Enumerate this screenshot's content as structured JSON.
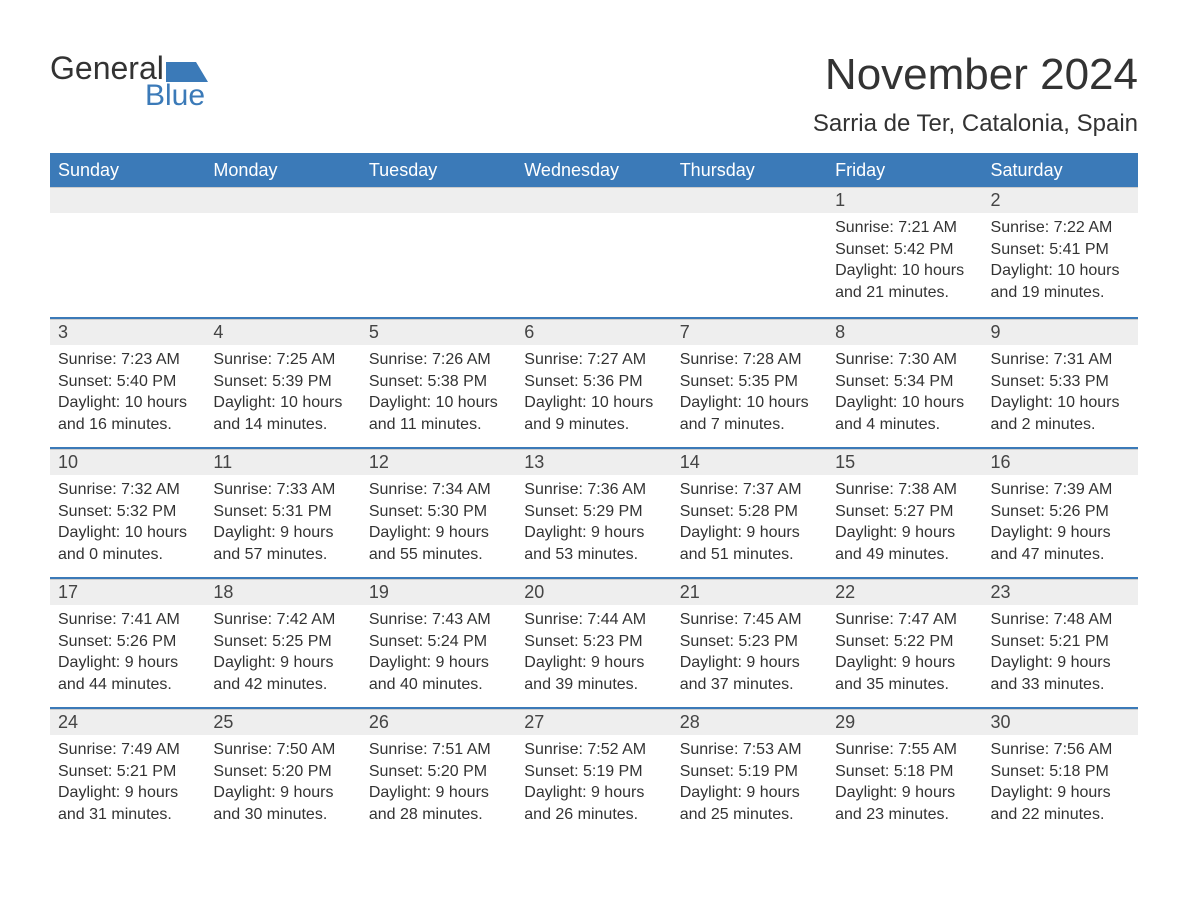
{
  "logo": {
    "text1": "General",
    "text2": "Blue",
    "accent_color": "#3b7ab8"
  },
  "title": "November 2024",
  "location": "Sarria de Ter, Catalonia, Spain",
  "colors": {
    "header_bg": "#3b7ab8",
    "header_text": "#ffffff",
    "row_divider": "#3b7ab8",
    "date_bg": "#eeeeee",
    "text": "#333333"
  },
  "day_headers": [
    "Sunday",
    "Monday",
    "Tuesday",
    "Wednesday",
    "Thursday",
    "Friday",
    "Saturday"
  ],
  "labels": {
    "sunrise": "Sunrise:",
    "sunset": "Sunset:",
    "daylight": "Daylight:"
  },
  "weeks": [
    [
      null,
      null,
      null,
      null,
      null,
      {
        "date": "1",
        "sunrise": "7:21 AM",
        "sunset": "5:42 PM",
        "daylight": "10 hours and 21 minutes."
      },
      {
        "date": "2",
        "sunrise": "7:22 AM",
        "sunset": "5:41 PM",
        "daylight": "10 hours and 19 minutes."
      }
    ],
    [
      {
        "date": "3",
        "sunrise": "7:23 AM",
        "sunset": "5:40 PM",
        "daylight": "10 hours and 16 minutes."
      },
      {
        "date": "4",
        "sunrise": "7:25 AM",
        "sunset": "5:39 PM",
        "daylight": "10 hours and 14 minutes."
      },
      {
        "date": "5",
        "sunrise": "7:26 AM",
        "sunset": "5:38 PM",
        "daylight": "10 hours and 11 minutes."
      },
      {
        "date": "6",
        "sunrise": "7:27 AM",
        "sunset": "5:36 PM",
        "daylight": "10 hours and 9 minutes."
      },
      {
        "date": "7",
        "sunrise": "7:28 AM",
        "sunset": "5:35 PM",
        "daylight": "10 hours and 7 minutes."
      },
      {
        "date": "8",
        "sunrise": "7:30 AM",
        "sunset": "5:34 PM",
        "daylight": "10 hours and 4 minutes."
      },
      {
        "date": "9",
        "sunrise": "7:31 AM",
        "sunset": "5:33 PM",
        "daylight": "10 hours and 2 minutes."
      }
    ],
    [
      {
        "date": "10",
        "sunrise": "7:32 AM",
        "sunset": "5:32 PM",
        "daylight": "10 hours and 0 minutes."
      },
      {
        "date": "11",
        "sunrise": "7:33 AM",
        "sunset": "5:31 PM",
        "daylight": "9 hours and 57 minutes."
      },
      {
        "date": "12",
        "sunrise": "7:34 AM",
        "sunset": "5:30 PM",
        "daylight": "9 hours and 55 minutes."
      },
      {
        "date": "13",
        "sunrise": "7:36 AM",
        "sunset": "5:29 PM",
        "daylight": "9 hours and 53 minutes."
      },
      {
        "date": "14",
        "sunrise": "7:37 AM",
        "sunset": "5:28 PM",
        "daylight": "9 hours and 51 minutes."
      },
      {
        "date": "15",
        "sunrise": "7:38 AM",
        "sunset": "5:27 PM",
        "daylight": "9 hours and 49 minutes."
      },
      {
        "date": "16",
        "sunrise": "7:39 AM",
        "sunset": "5:26 PM",
        "daylight": "9 hours and 47 minutes."
      }
    ],
    [
      {
        "date": "17",
        "sunrise": "7:41 AM",
        "sunset": "5:26 PM",
        "daylight": "9 hours and 44 minutes."
      },
      {
        "date": "18",
        "sunrise": "7:42 AM",
        "sunset": "5:25 PM",
        "daylight": "9 hours and 42 minutes."
      },
      {
        "date": "19",
        "sunrise": "7:43 AM",
        "sunset": "5:24 PM",
        "daylight": "9 hours and 40 minutes."
      },
      {
        "date": "20",
        "sunrise": "7:44 AM",
        "sunset": "5:23 PM",
        "daylight": "9 hours and 39 minutes."
      },
      {
        "date": "21",
        "sunrise": "7:45 AM",
        "sunset": "5:23 PM",
        "daylight": "9 hours and 37 minutes."
      },
      {
        "date": "22",
        "sunrise": "7:47 AM",
        "sunset": "5:22 PM",
        "daylight": "9 hours and 35 minutes."
      },
      {
        "date": "23",
        "sunrise": "7:48 AM",
        "sunset": "5:21 PM",
        "daylight": "9 hours and 33 minutes."
      }
    ],
    [
      {
        "date": "24",
        "sunrise": "7:49 AM",
        "sunset": "5:21 PM",
        "daylight": "9 hours and 31 minutes."
      },
      {
        "date": "25",
        "sunrise": "7:50 AM",
        "sunset": "5:20 PM",
        "daylight": "9 hours and 30 minutes."
      },
      {
        "date": "26",
        "sunrise": "7:51 AM",
        "sunset": "5:20 PM",
        "daylight": "9 hours and 28 minutes."
      },
      {
        "date": "27",
        "sunrise": "7:52 AM",
        "sunset": "5:19 PM",
        "daylight": "9 hours and 26 minutes."
      },
      {
        "date": "28",
        "sunrise": "7:53 AM",
        "sunset": "5:19 PM",
        "daylight": "9 hours and 25 minutes."
      },
      {
        "date": "29",
        "sunrise": "7:55 AM",
        "sunset": "5:18 PM",
        "daylight": "9 hours and 23 minutes."
      },
      {
        "date": "30",
        "sunrise": "7:56 AM",
        "sunset": "5:18 PM",
        "daylight": "9 hours and 22 minutes."
      }
    ]
  ]
}
